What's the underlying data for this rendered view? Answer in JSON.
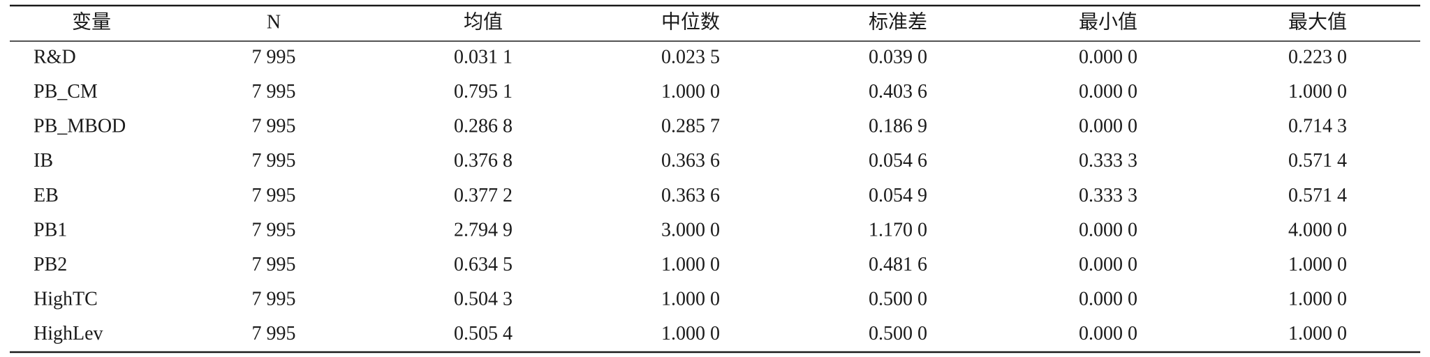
{
  "table": {
    "header": [
      "变量",
      "N",
      "均值",
      "中位数",
      "标准差",
      "最小值",
      "最大值"
    ],
    "rows": [
      [
        "R&D",
        "7 995",
        "0.031 1",
        "0.023 5",
        "0.039 0",
        "0.000 0",
        "0.223 0"
      ],
      [
        "PB_CM",
        "7 995",
        "0.795 1",
        "1.000 0",
        "0.403 6",
        "0.000 0",
        "1.000 0"
      ],
      [
        "PB_MBOD",
        "7 995",
        "0.286 8",
        "0.285 7",
        "0.186 9",
        "0.000 0",
        "0.714 3"
      ],
      [
        "IB",
        "7 995",
        "0.376 8",
        "0.363 6",
        "0.054 6",
        "0.333 3",
        "0.571 4"
      ],
      [
        "EB",
        "7 995",
        "0.377 2",
        "0.363 6",
        "0.054 9",
        "0.333 3",
        "0.571 4"
      ],
      [
        "PB1",
        "7 995",
        "2.794 9",
        "3.000 0",
        "1.170 0",
        "0.000 0",
        "4.000 0"
      ],
      [
        "PB2",
        "7 995",
        "0.634 5",
        "1.000 0",
        "0.481 6",
        "0.000 0",
        "1.000 0"
      ],
      [
        "HighTC",
        "7 995",
        "0.504 3",
        "1.000 0",
        "0.500 0",
        "0.000 0",
        "1.000 0"
      ],
      [
        "HighLev",
        "7 995",
        "0.505 4",
        "1.000 0",
        "0.500 0",
        "0.000 0",
        "1.000 0"
      ]
    ]
  }
}
